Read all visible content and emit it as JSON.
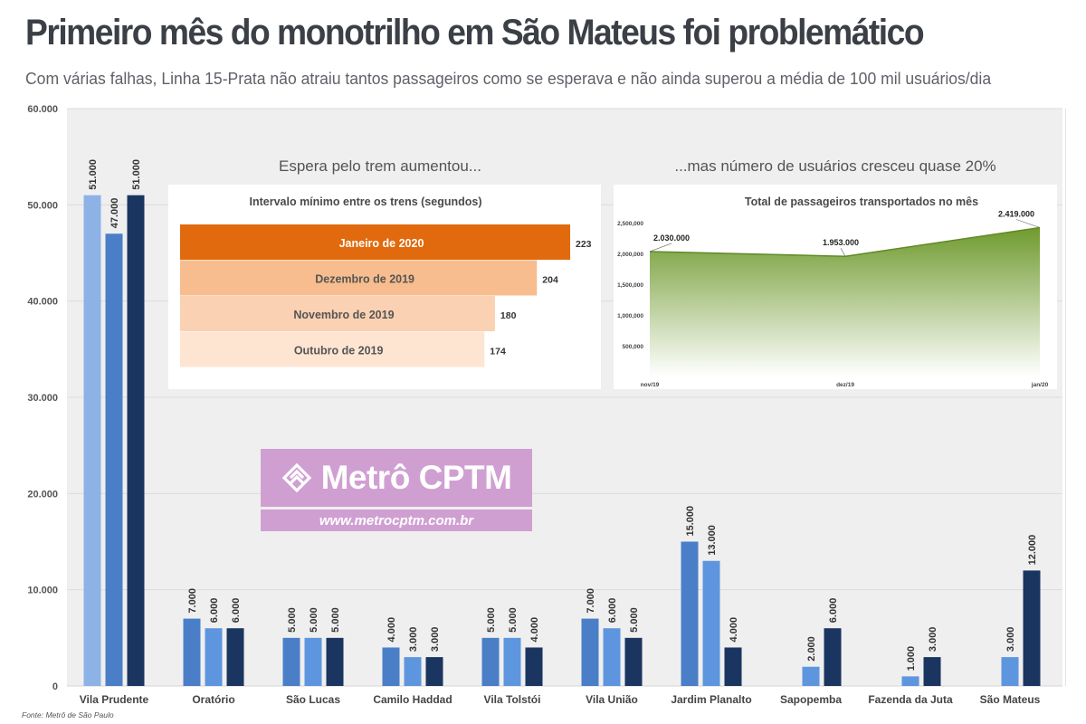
{
  "header": {
    "title": "Primeiro mês do monotrilho em São Mateus foi problemático",
    "subtitle": "Com várias falhas, Linha 15-Prata não atraiu tantos passageiros como se esperava e não ainda superou a média de 100 mil usuários/dia"
  },
  "chart_data": [
    {
      "type": "bar",
      "title": "",
      "xlabel": "",
      "ylabel": "",
      "ylim": [
        0,
        60000
      ],
      "yticks": [
        "0",
        "10.000",
        "20.000",
        "30.000",
        "40.000",
        "50.000",
        "60.000"
      ],
      "grid": true,
      "categories": [
        "Vila Prudente",
        "Oratório",
        "São Lucas",
        "Camilo Haddad",
        "Vila Tolstói",
        "Vila União",
        "Jardim Planalto",
        "Sapopemba",
        "Fazenda da Juta",
        "São Mateus"
      ],
      "series": [
        {
          "values": [
            51000,
            7000,
            5000,
            4000,
            5000,
            7000,
            15000,
            null,
            null,
            null
          ],
          "labels": [
            "51.000",
            "7.000",
            "5.000",
            "4.000",
            "5.000",
            "7.000",
            "15.000",
            "",
            "",
            ""
          ]
        },
        {
          "values": [
            47000,
            6000,
            5000,
            3000,
            5000,
            6000,
            13000,
            2000,
            1000,
            3000
          ],
          "labels": [
            "47.000",
            "6.000",
            "5.000",
            "3.000",
            "5.000",
            "6.000",
            "13.000",
            "2.000",
            "1.000",
            "3.000"
          ]
        },
        {
          "values": [
            51000,
            6000,
            5000,
            3000,
            4000,
            5000,
            4000,
            6000,
            3000,
            12000
          ],
          "labels": [
            "51.000",
            "6.000",
            "5.000",
            "3.000",
            "4.000",
            "5.000",
            "4.000",
            "6.000",
            "3.000",
            "12.000"
          ]
        }
      ]
    },
    {
      "type": "bar",
      "orientation": "horizontal",
      "heading": "Espera pelo trem aumentou...",
      "title": "Intervalo mínimo entre os trens (segundos)",
      "categories": [
        "Janeiro de 2020",
        "Dezembro de 2019",
        "Novembro de 2019",
        "Outubro de 2019"
      ],
      "values": [
        223,
        204,
        180,
        174
      ],
      "colors": [
        "#e06a0d",
        "#f7bd8e",
        "#fad1b2",
        "#fde5d2"
      ]
    },
    {
      "type": "area",
      "heading": "...mas número de usuários cresceu quase 20%",
      "title": "Total de passageiros transportados no mês",
      "x": [
        "nov/19",
        "dez/19",
        "jan/20"
      ],
      "values": [
        2030000,
        1953000,
        2419000
      ],
      "labels": [
        "2.030.000",
        "1.953.000",
        "2.419.000"
      ],
      "ylim": [
        0,
        2500000
      ],
      "yticks": [
        "500,000",
        "1,000,000",
        "1,500,000",
        "2,000,000",
        "2,500,000"
      ],
      "color": "#6f9a2e"
    }
  ],
  "colors": {
    "series": [
      [
        "#8db2e6",
        "#4a7fc8",
        "#1a3560"
      ],
      [
        "#4a7fc8",
        "#5d96de",
        "#1a3560"
      ]
    ],
    "panel": "#efefef",
    "title": "#3b3f46"
  },
  "watermark": {
    "brand": "Metrô CPTM",
    "url": "www.metrocptm.com.br",
    "icon": "metro-logo-icon"
  },
  "source": "Fonte: Metrô de São Paulo"
}
